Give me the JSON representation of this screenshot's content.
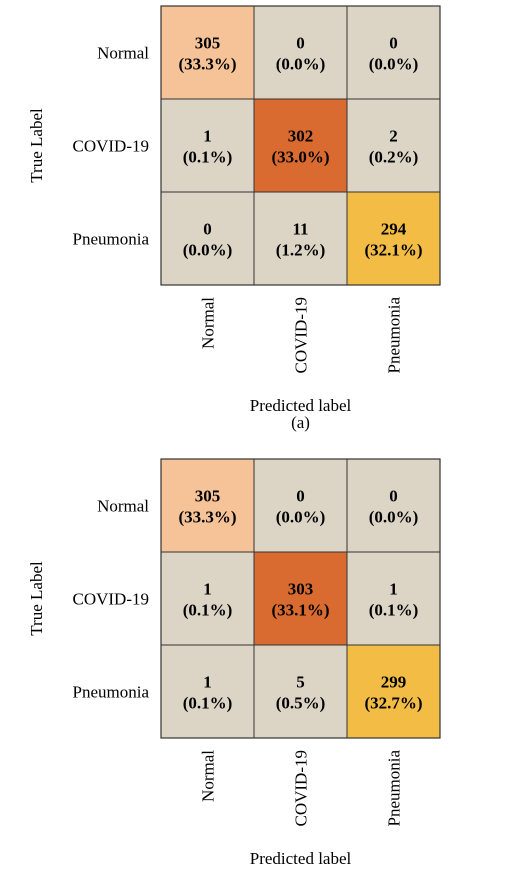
{
  "chart_data": [
    {
      "type": "heatmap",
      "caption": "(a)",
      "xlabel": "Predicted label",
      "ylabel": "True Label",
      "x_categories": [
        "Normal",
        "COVID-19",
        "Pneumonia"
      ],
      "y_categories": [
        "Normal",
        "COVID-19",
        "Pneumonia"
      ],
      "values": [
        [
          305,
          0,
          0
        ],
        [
          1,
          302,
          2
        ],
        [
          0,
          11,
          294
        ]
      ],
      "percent_labels": [
        [
          "(33.3%)",
          "(0.0%)",
          "(0.0%)"
        ],
        [
          "(0.1%)",
          "(33.0%)",
          "(0.2%)"
        ],
        [
          "(0.0%)",
          "(1.2%)",
          "(32.1%)"
        ]
      ],
      "cell_colors": [
        [
          "#f5c397",
          "#dcd5c6",
          "#dcd5c6"
        ],
        [
          "#dcd5c6",
          "#d96b30",
          "#dcd5c6"
        ],
        [
          "#dcd5c6",
          "#dcd5c6",
          "#f3bd45"
        ]
      ]
    },
    {
      "type": "heatmap",
      "caption": "",
      "xlabel": "Predicted label",
      "ylabel": "True Label",
      "x_categories": [
        "Normal",
        "COVID-19",
        "Pneumonia"
      ],
      "y_categories": [
        "Normal",
        "COVID-19",
        "Pneumonia"
      ],
      "values": [
        [
          305,
          0,
          0
        ],
        [
          1,
          303,
          1
        ],
        [
          1,
          5,
          299
        ]
      ],
      "percent_labels": [
        [
          "(33.3%)",
          "(0.0%)",
          "(0.0%)"
        ],
        [
          "(0.1%)",
          "(33.1%)",
          "(0.1%)"
        ],
        [
          "(0.1%)",
          "(0.5%)",
          "(32.7%)"
        ]
      ],
      "cell_colors": [
        [
          "#f5c397",
          "#dcd5c6",
          "#dcd5c6"
        ],
        [
          "#dcd5c6",
          "#d96b30",
          "#dcd5c6"
        ],
        [
          "#dcd5c6",
          "#dcd5c6",
          "#f3bd45"
        ]
      ]
    }
  ]
}
